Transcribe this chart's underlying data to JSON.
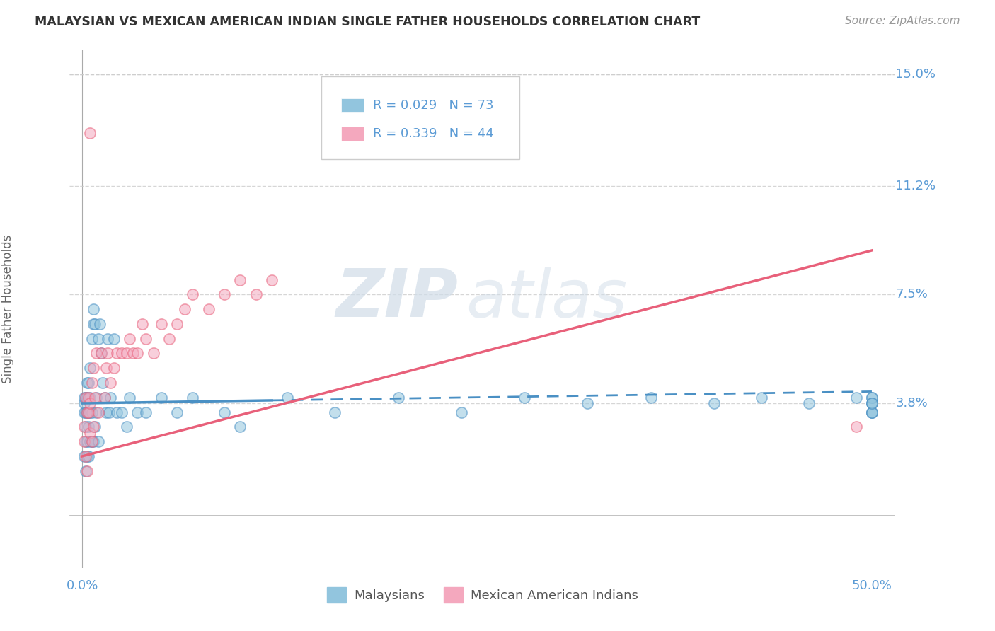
{
  "title": "MALAYSIAN VS MEXICAN AMERICAN INDIAN SINGLE FATHER HOUSEHOLDS CORRELATION CHART",
  "source": "Source: ZipAtlas.com",
  "ylabel": "Single Father Households",
  "x_min": 0.0,
  "x_max": 0.5,
  "y_min": -0.005,
  "y_max": 0.155,
  "y_tick_labels": [
    "3.8%",
    "7.5%",
    "11.2%",
    "15.0%"
  ],
  "y_tick_values": [
    0.038,
    0.075,
    0.112,
    0.15
  ],
  "grid_color": "#cccccc",
  "background_color": "#ffffff",
  "blue_color": "#92C5DE",
  "pink_color": "#F4A8BE",
  "blue_line_color": "#4A90C4",
  "pink_line_color": "#E8607A",
  "label_color": "#5B9BD5",
  "watermark_zip": "ZIP",
  "watermark_atlas": "atlas",
  "malaysian_x": [
    0.001,
    0.001,
    0.001,
    0.001,
    0.002,
    0.002,
    0.002,
    0.002,
    0.002,
    0.003,
    0.003,
    0.003,
    0.003,
    0.003,
    0.004,
    0.004,
    0.004,
    0.004,
    0.005,
    0.005,
    0.005,
    0.005,
    0.006,
    0.006,
    0.006,
    0.007,
    0.007,
    0.007,
    0.008,
    0.008,
    0.009,
    0.009,
    0.01,
    0.01,
    0.011,
    0.012,
    0.013,
    0.014,
    0.015,
    0.016,
    0.017,
    0.018,
    0.02,
    0.022,
    0.025,
    0.028,
    0.03,
    0.035,
    0.04,
    0.05,
    0.06,
    0.07,
    0.09,
    0.1,
    0.13,
    0.16,
    0.2,
    0.24,
    0.28,
    0.32,
    0.36,
    0.4,
    0.43,
    0.46,
    0.49,
    0.5,
    0.5,
    0.5,
    0.5,
    0.5,
    0.5,
    0.5,
    0.5
  ],
  "malaysian_y": [
    0.035,
    0.038,
    0.04,
    0.02,
    0.025,
    0.03,
    0.035,
    0.04,
    0.015,
    0.02,
    0.025,
    0.035,
    0.04,
    0.045,
    0.02,
    0.03,
    0.035,
    0.045,
    0.025,
    0.035,
    0.04,
    0.05,
    0.025,
    0.035,
    0.06,
    0.025,
    0.065,
    0.07,
    0.03,
    0.065,
    0.035,
    0.04,
    0.025,
    0.06,
    0.065,
    0.055,
    0.045,
    0.04,
    0.035,
    0.06,
    0.035,
    0.04,
    0.06,
    0.035,
    0.035,
    0.03,
    0.04,
    0.035,
    0.035,
    0.04,
    0.035,
    0.04,
    0.035,
    0.03,
    0.04,
    0.035,
    0.04,
    0.035,
    0.04,
    0.038,
    0.04,
    0.038,
    0.04,
    0.038,
    0.04,
    0.038,
    0.035,
    0.04,
    0.035,
    0.04,
    0.038,
    0.035,
    0.038
  ],
  "mexican_x": [
    0.001,
    0.001,
    0.002,
    0.002,
    0.003,
    0.003,
    0.004,
    0.004,
    0.005,
    0.005,
    0.006,
    0.006,
    0.007,
    0.007,
    0.008,
    0.009,
    0.01,
    0.012,
    0.014,
    0.015,
    0.016,
    0.018,
    0.02,
    0.022,
    0.025,
    0.028,
    0.03,
    0.032,
    0.035,
    0.038,
    0.04,
    0.045,
    0.05,
    0.055,
    0.06,
    0.065,
    0.07,
    0.08,
    0.09,
    0.1,
    0.11,
    0.12,
    0.005,
    0.49
  ],
  "mexican_y": [
    0.03,
    0.025,
    0.04,
    0.02,
    0.035,
    0.015,
    0.035,
    0.04,
    0.028,
    0.038,
    0.025,
    0.045,
    0.03,
    0.05,
    0.04,
    0.055,
    0.035,
    0.055,
    0.04,
    0.05,
    0.055,
    0.045,
    0.05,
    0.055,
    0.055,
    0.055,
    0.06,
    0.055,
    0.055,
    0.065,
    0.06,
    0.055,
    0.065,
    0.06,
    0.065,
    0.07,
    0.075,
    0.07,
    0.075,
    0.08,
    0.075,
    0.08,
    0.13,
    0.03
  ],
  "mal_line_x": [
    0.0,
    0.5
  ],
  "mal_line_y": [
    0.038,
    0.042
  ],
  "mex_line_x": [
    0.0,
    0.5
  ],
  "mex_line_y": [
    0.028,
    0.09
  ]
}
